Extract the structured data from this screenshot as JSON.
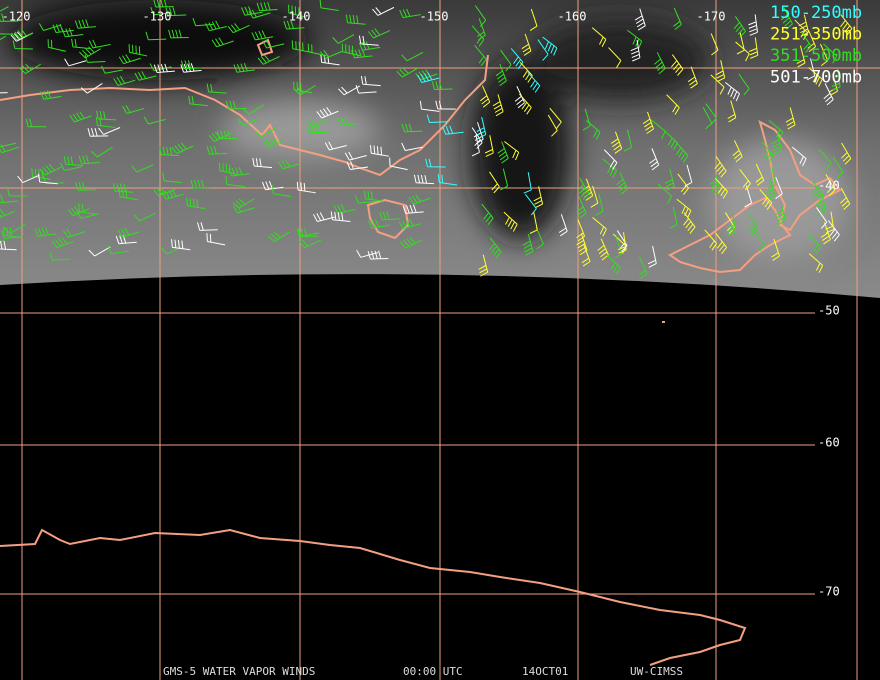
{
  "grid": {
    "longitude_labels": [
      "-120",
      "-130",
      "-140",
      "-150",
      "-160",
      "-170"
    ],
    "latitude_labels": [
      "-40",
      "-50",
      "-60",
      "-70"
    ]
  },
  "legend": [
    {
      "label": "150-250mb",
      "color": "#33ffff"
    },
    {
      "label": "251-350mb",
      "color": "#ffff33"
    },
    {
      "label": "351-500mb",
      "color": "#33dd22"
    },
    {
      "label": "501-700mb",
      "color": "#ffffff"
    }
  ],
  "footer": [
    "GMS-5 WATER VAPOR WINDS",
    "00:00 UTC",
    "14OCT01",
    "UW-CIMSS"
  ]
}
